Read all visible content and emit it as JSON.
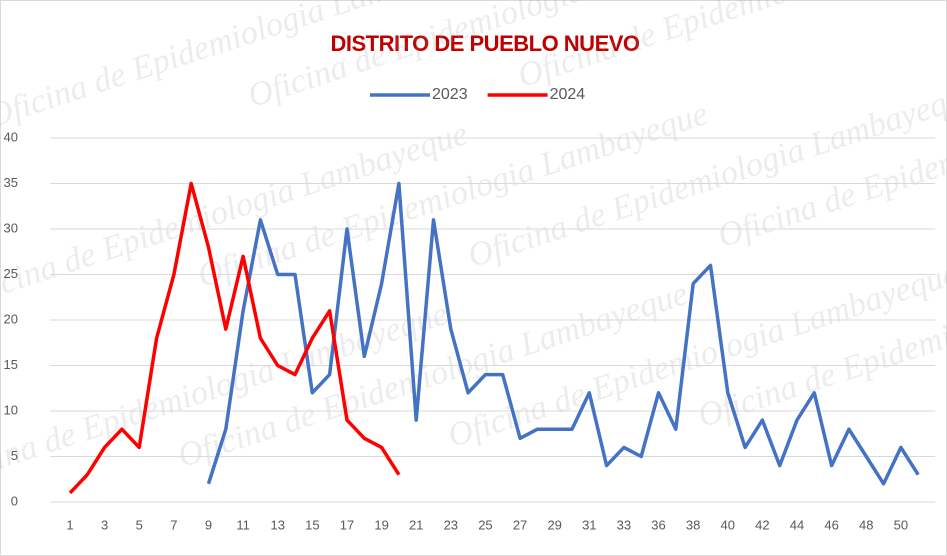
{
  "chart_data": {
    "type": "line",
    "title": "DISTRITO DE PUEBLO NUEVO",
    "watermark": "Oficina de Epidemiologia Lambayeque",
    "categories": [
      1,
      null,
      3,
      null,
      5,
      null,
      7,
      null,
      9,
      null,
      11,
      null,
      13,
      null,
      15,
      null,
      17,
      null,
      19,
      null,
      21,
      null,
      23,
      null,
      25,
      null,
      27,
      null,
      29,
      null,
      31,
      null,
      33,
      null,
      36,
      null,
      38,
      null,
      40,
      null,
      42,
      null,
      44,
      null,
      46,
      null,
      48,
      null,
      50,
      null
    ],
    "series": [
      {
        "name": "2023",
        "color": "#4472c4",
        "values": [
          null,
          null,
          null,
          null,
          null,
          null,
          null,
          null,
          2,
          8,
          21,
          31,
          25,
          25,
          12,
          14,
          30,
          16,
          24,
          35,
          9,
          31,
          19,
          12,
          14,
          14,
          7,
          8,
          8,
          8,
          12,
          4,
          6,
          5,
          12,
          8,
          24,
          26,
          12,
          6,
          9,
          4,
          9,
          12,
          4,
          8,
          5,
          2,
          6,
          3
        ]
      },
      {
        "name": "2024",
        "color": "#ff0000",
        "values": [
          1,
          3,
          6,
          8,
          6,
          18,
          25,
          35,
          28,
          19,
          27,
          18,
          15,
          14,
          18,
          21,
          9,
          7,
          6,
          3,
          null,
          null,
          null,
          null,
          null,
          null,
          null,
          null,
          null,
          null,
          null,
          null,
          null,
          null,
          null,
          null,
          null,
          null,
          null,
          null,
          null,
          null,
          null,
          null,
          null,
          null,
          null,
          null,
          null,
          null
        ]
      }
    ],
    "ylim": [
      0,
      40
    ],
    "yticks": [
      0,
      5,
      10,
      15,
      20,
      25,
      30,
      35,
      40
    ],
    "grid": true,
    "legend": "top"
  }
}
